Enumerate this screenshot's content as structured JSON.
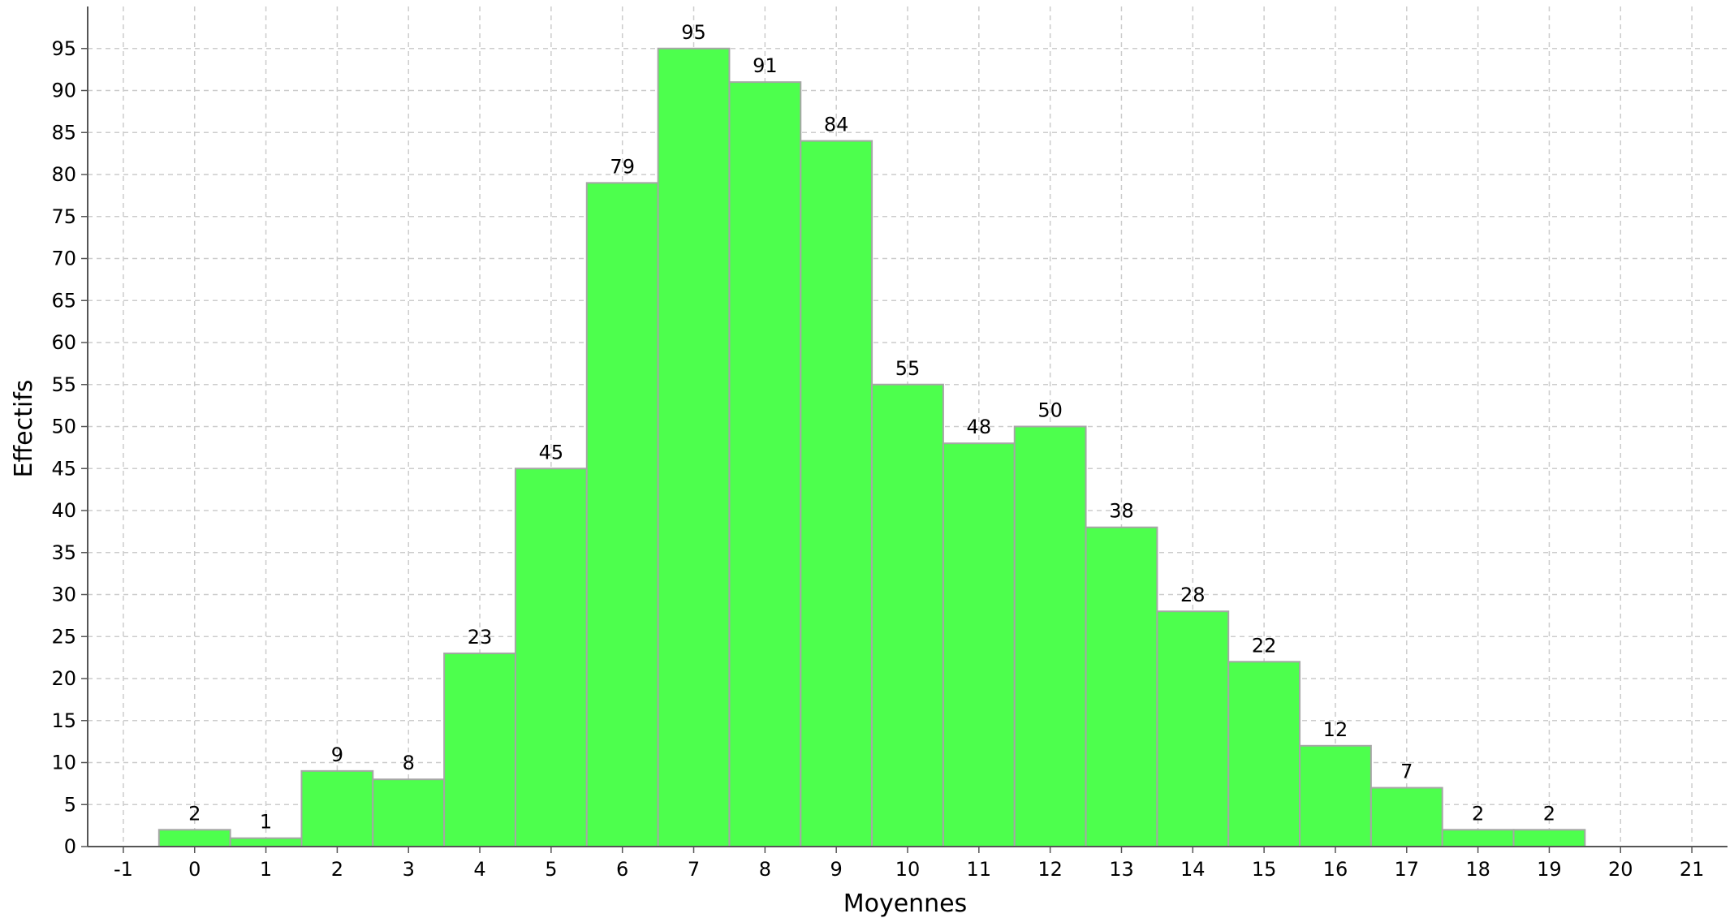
{
  "chart_data": {
    "type": "bar",
    "xlabel": "Moyennes",
    "ylabel": "Effectifs",
    "categories": [
      0,
      1,
      2,
      3,
      4,
      5,
      6,
      7,
      8,
      9,
      10,
      11,
      12,
      13,
      14,
      15,
      16,
      17,
      18,
      19
    ],
    "values": [
      2,
      1,
      9,
      8,
      23,
      45,
      79,
      95,
      91,
      84,
      55,
      48,
      50,
      38,
      28,
      22,
      12,
      7,
      2,
      2
    ],
    "xlim": [
      -1.5,
      21.5
    ],
    "xticks": [
      -1,
      0,
      1,
      2,
      3,
      4,
      5,
      6,
      7,
      8,
      9,
      10,
      11,
      12,
      13,
      14,
      15,
      16,
      17,
      18,
      19,
      20,
      21
    ],
    "ylim": [
      0,
      100
    ],
    "yticks": [
      0,
      5,
      10,
      15,
      20,
      25,
      30,
      35,
      40,
      45,
      50,
      55,
      60,
      65,
      70,
      75,
      80,
      85,
      90,
      95
    ],
    "bar_width": 1,
    "grid": true,
    "data_labels": true,
    "colors": {
      "bar_fill": "#4dff4d",
      "bar_edge": "#a6a6a6",
      "grid": "#cccccc",
      "axis": "#555555"
    }
  }
}
